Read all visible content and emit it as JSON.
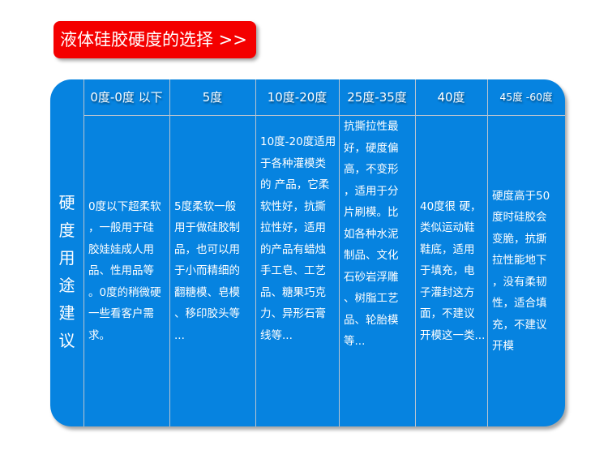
{
  "title": "液体硅胶硬度的选择 >>",
  "row_label": [
    "硬",
    "度",
    "用",
    "途",
    "建",
    "议"
  ],
  "columns": [
    {
      "header": "0度-0度 以下",
      "lines": [
        "0度以下超柔软",
        "，一般用于硅",
        "胶娃娃成人用",
        "品、性用品等",
        "。0度的稍微硬",
        "一些看客户需",
        "求。"
      ]
    },
    {
      "header": "5度",
      "lines": [
        "5度柔软一般",
        "用于做硅胶制",
        "品，也可以用",
        "于小而精细的",
        "翻糖模、皂模",
        "、移印胶头等",
        "..."
      ]
    },
    {
      "header": "10度-20度",
      "lines": [
        "10度-20度适用",
        "于各种灌模类",
        "的 产品，它柔",
        "软性好，抗撕",
        "拉性好，适用",
        "的产品有蜡烛",
        "手工皂、工艺",
        "品、糖果巧克",
        "力、异形石膏",
        "线等..."
      ]
    },
    {
      "header": "25度-35度",
      "lines": [
        "抗撕拉性最",
        "好，硬度偏",
        "高，不变形",
        "，适用于分",
        "片刷模。比",
        "如各种水泥",
        "制品、文化",
        "石砂岩浮雕",
        "、树脂工艺",
        "品、轮胎模",
        "等..."
      ]
    },
    {
      "header": "40度",
      "lines": [
        "40度很 硬，",
        "类似运动鞋",
        "鞋底，适用",
        "于填充，电",
        "子灌封这方",
        "面，不建议",
        "开模这一类..."
      ]
    },
    {
      "header": "45度 -60度",
      "lines": [
        "硬度高于50",
        "度时硅胶会",
        "变脆，抗撕",
        "拉性能地下",
        "，没有柔韧",
        "性，适合填",
        "充，不建议",
        "开模"
      ]
    }
  ],
  "colors": {
    "title_bg": "#f40000",
    "table_bg": "#0683e0",
    "text": "#ffffff"
  }
}
